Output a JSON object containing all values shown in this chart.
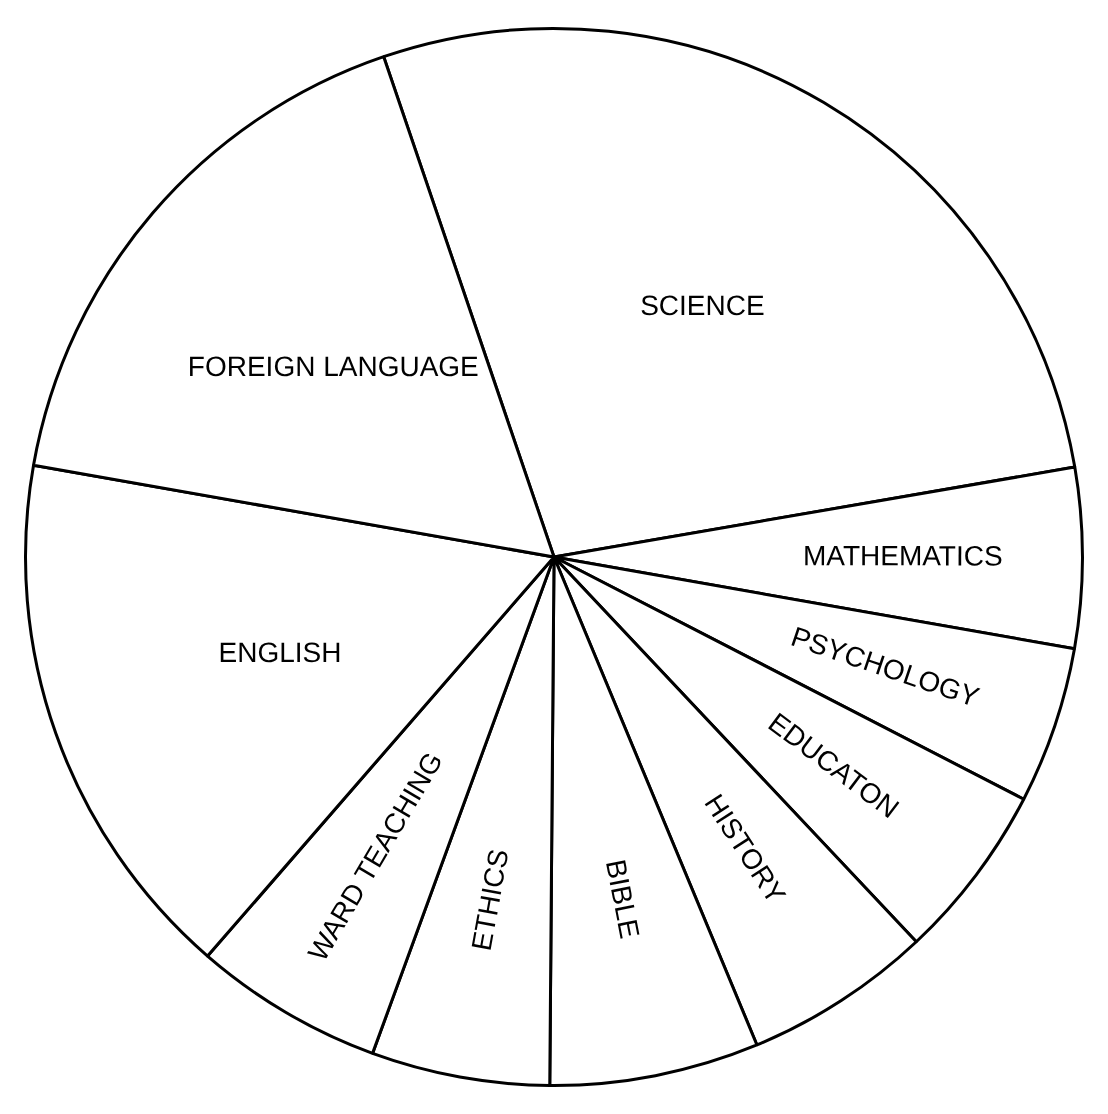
{
  "chart_data": {
    "type": "pie",
    "categories": [
      "SCIENCE",
      "MATHEMATICS",
      "PSYCHOLOGY",
      "EDUCATON",
      "HISTORY",
      "BIBLE",
      "ETHICS",
      "WARD TEACHING",
      "ENGLISH",
      "FOREIGN LANGUAGE"
    ],
    "values": [
      27.5,
      5.5,
      4.8,
      5.4,
      5.75,
      6.4,
      5.45,
      5.8,
      16.4,
      17
    ],
    "colors": [
      "#ffffff",
      "#ffffff",
      "#ffffff",
      "#ffffff",
      "#ffffff",
      "#ffffff",
      "#ffffff",
      "#ffffff",
      "#ffffff",
      "#ffffff"
    ],
    "legend": false
  }
}
